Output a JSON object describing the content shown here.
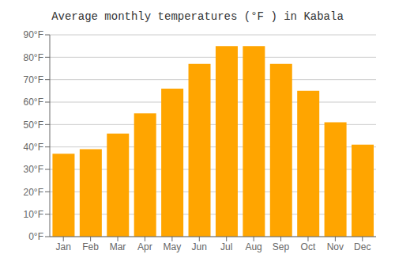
{
  "chart_data": {
    "type": "bar",
    "title": "Average monthly temperatures (°F ) in Kabala",
    "categories": [
      "Jan",
      "Feb",
      "Mar",
      "Apr",
      "May",
      "Jun",
      "Jul",
      "Aug",
      "Sep",
      "Oct",
      "Nov",
      "Dec"
    ],
    "values": [
      37,
      39,
      46,
      55,
      66,
      77,
      85,
      85,
      77,
      65,
      51,
      41
    ],
    "color": "#FFA500",
    "ylim": [
      0,
      90
    ],
    "yticks": [
      {
        "value": 0,
        "label": "0°F"
      },
      {
        "value": 10,
        "label": "10°F"
      },
      {
        "value": 20,
        "label": "20°F"
      },
      {
        "value": 30,
        "label": "30°F"
      },
      {
        "value": 40,
        "label": "40°F"
      },
      {
        "value": 50,
        "label": "50°F"
      },
      {
        "value": 60,
        "label": "60°F"
      },
      {
        "value": 70,
        "label": "70°F"
      },
      {
        "value": 80,
        "label": "80°F"
      },
      {
        "value": 90,
        "label": "90°F"
      }
    ],
    "grid": true
  }
}
